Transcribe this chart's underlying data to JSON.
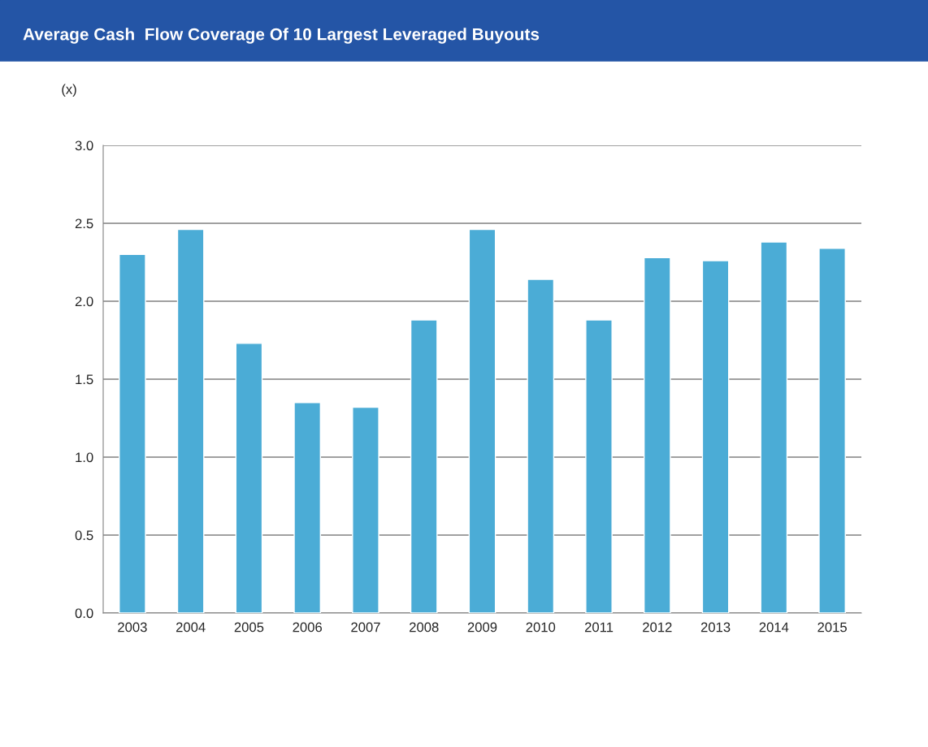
{
  "chart_data": {
    "type": "bar",
    "title": "Average Cash  Flow Coverage Of 10 Largest Leveraged Buyouts",
    "ylabel": "(x)",
    "categories": [
      "2003",
      "2004",
      "2005",
      "2006",
      "2007",
      "2008",
      "2009",
      "2010",
      "2011",
      "2012",
      "2013",
      "2014",
      "2015"
    ],
    "values": [
      2.3,
      2.46,
      1.73,
      1.35,
      1.32,
      1.88,
      2.46,
      2.14,
      1.88,
      2.28,
      2.26,
      2.38,
      2.34
    ],
    "color": "#4bacd6",
    "ylim": [
      0,
      3
    ],
    "yticks": [
      {
        "value": 0,
        "label": "0.0"
      },
      {
        "value": 0.5,
        "label": "0.5"
      },
      {
        "value": 1,
        "label": "1.0"
      },
      {
        "value": 1.5,
        "label": "1.5"
      },
      {
        "value": 2,
        "label": "2.0"
      },
      {
        "value": 2.5,
        "label": "2.5"
      },
      {
        "value": 3,
        "label": "3.0"
      }
    ],
    "grid": "y",
    "legend": false
  }
}
